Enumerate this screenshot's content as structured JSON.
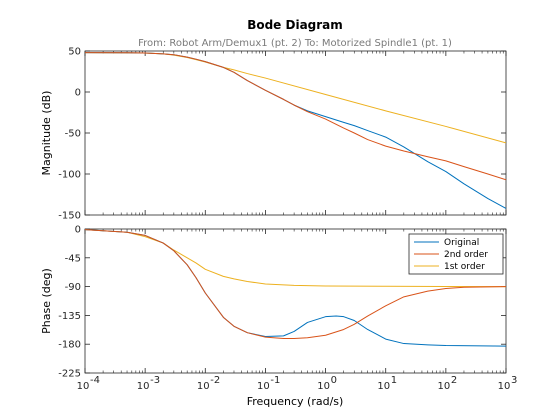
{
  "chart_data": {
    "type": "line",
    "title": "Bode Diagram",
    "subtitle": "From: Robot Arm/Demux1 (pt. 2)  To: Motorized  Spindle1 (pt. 1)",
    "xlabel": "Frequency  (rad/s)",
    "xscale": "log",
    "xlim": [
      0.0001,
      1000
    ],
    "x_ticks": [
      "10",
      "10",
      "10",
      "10",
      "10",
      "10",
      "10",
      "10"
    ],
    "x_tick_exponents": [
      "-4",
      "-3",
      "-2",
      "-1",
      "0",
      "1",
      "2",
      "3"
    ],
    "grid": false,
    "legend_position": "top-right",
    "legend_panel": "phase",
    "colors": {
      "Original": "#0072bd",
      "2nd order": "#d95319",
      "1st order": "#edb120"
    },
    "panels": [
      {
        "id": "magnitude",
        "ylabel": "Magnitude (dB)",
        "ylim": [
          -150,
          50
        ],
        "y_ticks": [
          50,
          0,
          -50,
          -100,
          -150
        ],
        "y_tick_labels": [
          "50",
          "0",
          "-50",
          "-100",
          "-150"
        ],
        "series": [
          {
            "name": "Original",
            "x": [
              0.0001,
              0.0005,
              0.001,
              0.002,
              0.003,
              0.005,
              0.007,
              0.01,
              0.02,
              0.03,
              0.05,
              0.1,
              0.2,
              0.3,
              0.5,
              1,
              2,
              3,
              5,
              10,
              20,
              50,
              100,
              200,
              500,
              1000
            ],
            "y": [
              48,
              47.8,
              47.5,
              46.5,
              45.5,
              42.5,
              40,
              37,
              30,
              24,
              14,
              2,
              -9,
              -16,
              -23,
              -30,
              -37,
              -41,
              -47,
              -55,
              -67,
              -85,
              -97,
              -112,
              -130,
              -142
            ]
          },
          {
            "name": "2nd order",
            "x": [
              0.0001,
              0.0005,
              0.001,
              0.002,
              0.003,
              0.005,
              0.007,
              0.01,
              0.02,
              0.03,
              0.05,
              0.1,
              0.2,
              0.3,
              0.5,
              1,
              2,
              3,
              5,
              10,
              20,
              50,
              100,
              200,
              500,
              1000
            ],
            "y": [
              48,
              47.8,
              47.5,
              46.5,
              45.5,
              42.5,
              40,
              37,
              30,
              24,
              14,
              2,
              -9,
              -16,
              -24,
              -33,
              -44,
              -50,
              -58,
              -66,
              -72,
              -79,
              -84,
              -91,
              -100,
              -107
            ]
          },
          {
            "name": "1st order",
            "x": [
              0.0001,
              0.001,
              0.002,
              0.003,
              0.005,
              0.007,
              0.01,
              0.02,
              0.03,
              0.05,
              0.1,
              1,
              10,
              100,
              1000
            ],
            "y": [
              48,
              47.5,
              46.5,
              45,
              42,
              39.5,
              36.5,
              30,
              27,
              22.5,
              17,
              -3,
              -23,
              -42,
              -62
            ]
          }
        ]
      },
      {
        "id": "phase",
        "ylabel": "Phase (deg)",
        "ylim": [
          -225,
          0
        ],
        "y_ticks": [
          0,
          -45,
          -90,
          -135,
          -180,
          -225
        ],
        "y_tick_labels": [
          "0",
          "-45",
          "-90",
          "-135",
          "-180",
          "-225"
        ],
        "series": [
          {
            "name": "Original",
            "x": [
              0.0001,
              0.0005,
              0.001,
              0.002,
              0.003,
              0.005,
              0.007,
              0.01,
              0.02,
              0.03,
              0.05,
              0.1,
              0.2,
              0.3,
              0.5,
              1,
              1.5,
              2,
              3,
              5,
              10,
              20,
              50,
              100,
              1000
            ],
            "y": [
              -1,
              -5,
              -10,
              -22,
              -34,
              -56,
              -76,
              -100,
              -138,
              -152,
              -162,
              -168,
              -167,
              -160,
              -146,
              -137,
              -136,
              -137,
              -143,
              -157,
              -172,
              -179,
              -181,
              -182,
              -183
            ]
          },
          {
            "name": "2nd order",
            "x": [
              0.0001,
              0.0005,
              0.001,
              0.002,
              0.003,
              0.005,
              0.007,
              0.01,
              0.02,
              0.03,
              0.05,
              0.1,
              0.2,
              0.3,
              0.5,
              1,
              2,
              3,
              5,
              10,
              20,
              50,
              100,
              200,
              1000
            ],
            "y": [
              -1,
              -5,
              -10,
              -22,
              -34,
              -56,
              -76,
              -100,
              -138,
              -152,
              -162,
              -169,
              -171,
              -171,
              -170,
              -166,
              -157,
              -149,
              -136,
              -120,
              -106,
              -97,
              -93,
              -91,
              -90
            ]
          },
          {
            "name": "1st order",
            "x": [
              0.0001,
              0.0005,
              0.001,
              0.002,
              0.003,
              0.005,
              0.007,
              0.01,
              0.02,
              0.03,
              0.05,
              0.1,
              0.3,
              1,
              10,
              100,
              1000
            ],
            "y": [
              -1,
              -5,
              -12,
              -22,
              -33,
              -45,
              -53,
              -63,
              -74,
              -78,
              -82,
              -86,
              -88,
              -89,
              -89.5,
              -89.9,
              -90
            ]
          }
        ]
      }
    ]
  }
}
